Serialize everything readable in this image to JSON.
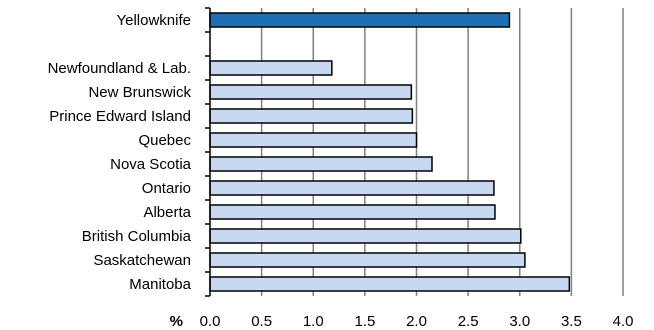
{
  "chart_data": {
    "type": "bar",
    "orientation": "horizontal",
    "categories": [
      "Yellowknife",
      "",
      "Newfoundland & Lab.",
      "New Brunswick",
      "Prince Edward Island",
      "Quebec",
      "Nova Scotia",
      "Ontario",
      "Alberta",
      "British Columbia",
      "Saskatchewan",
      "Manitoba"
    ],
    "values": [
      2.9,
      null,
      1.18,
      1.95,
      1.96,
      2.0,
      2.15,
      2.75,
      2.76,
      3.01,
      3.05,
      3.48
    ],
    "highlight_index": 0,
    "xlabel": "%",
    "xlim": [
      0,
      4.0
    ],
    "xticks": [
      "0.0",
      "0.5",
      "1.0",
      "1.5",
      "2.0",
      "2.5",
      "3.0",
      "3.5",
      "4.0"
    ],
    "grid": true,
    "legend": "none",
    "colors": {
      "highlight_fill": "#1f6fb5",
      "bar_fill": "#c6d9f1",
      "bar_stroke": "#000000",
      "grid": "#808080"
    }
  }
}
